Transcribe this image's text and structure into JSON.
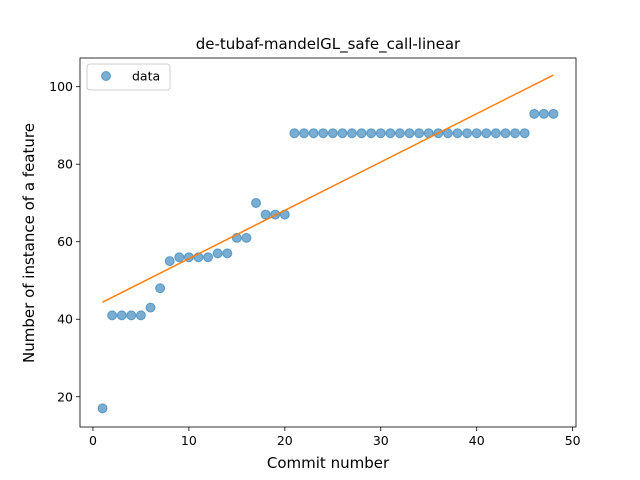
{
  "chart_data": {
    "type": "scatter",
    "title": "de-tubaf-mandelGL_safe_call-linear",
    "xlabel": "Commit number",
    "ylabel": "Number of instance of a feature",
    "xlim": [
      -1.35,
      50.35
    ],
    "ylim": [
      12.2,
      107.4
    ],
    "xticks": [
      0,
      10,
      20,
      30,
      40,
      50
    ],
    "yticks": [
      20,
      40,
      60,
      80,
      100
    ],
    "legend_position": "top-left",
    "grid": false,
    "series": [
      {
        "name": "data",
        "kind": "points",
        "color": "#1f77b4",
        "x": [
          1,
          2,
          3,
          4,
          5,
          6,
          7,
          8,
          9,
          10,
          11,
          12,
          13,
          14,
          15,
          16,
          17,
          18,
          19,
          20,
          21,
          22,
          23,
          24,
          25,
          26,
          27,
          28,
          29,
          30,
          31,
          32,
          33,
          34,
          35,
          36,
          37,
          38,
          39,
          40,
          41,
          42,
          43,
          44,
          45,
          46,
          47,
          48
        ],
        "y": [
          17,
          41,
          41,
          41,
          41,
          43,
          48,
          55,
          56,
          56,
          56,
          56,
          57,
          57,
          61,
          61,
          70,
          67,
          67,
          67,
          88,
          88,
          88,
          88,
          88,
          88,
          88,
          88,
          88,
          88,
          88,
          88,
          88,
          88,
          88,
          88,
          88,
          88,
          88,
          88,
          88,
          88,
          88,
          88,
          88,
          93,
          93,
          93
        ]
      },
      {
        "kind": "fit-line",
        "color": "#ff7f0e",
        "x": [
          1,
          48
        ],
        "y": [
          44.4,
          103.0
        ]
      }
    ]
  }
}
